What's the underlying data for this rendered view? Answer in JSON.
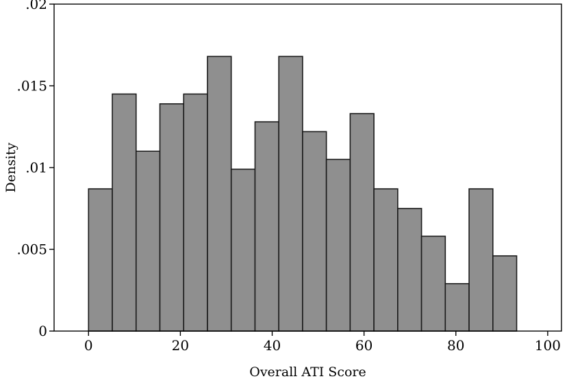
{
  "chart_data": {
    "type": "bar",
    "subtype": "histogram",
    "xlabel": "Overall ATI Score",
    "ylabel": "Density",
    "xlim": [
      -7.5,
      103
    ],
    "ylim": [
      0,
      0.02
    ],
    "xticks": [
      {
        "value": 0,
        "label": "0"
      },
      {
        "value": 20,
        "label": "20"
      },
      {
        "value": 40,
        "label": "40"
      },
      {
        "value": 60,
        "label": "60"
      },
      {
        "value": 80,
        "label": "80"
      },
      {
        "value": 100,
        "label": "100"
      }
    ],
    "yticks": [
      {
        "value": 0,
        "label": "0"
      },
      {
        "value": 0.005,
        "label": ".005"
      },
      {
        "value": 0.01,
        "label": ".01"
      },
      {
        "value": 0.015,
        "label": ".015"
      },
      {
        "value": 0.02,
        "label": ".02"
      }
    ],
    "bin_width": 5.18,
    "bin_edges": [
      0.0,
      5.18,
      10.36,
      15.54,
      20.72,
      25.9,
      31.08,
      36.26,
      41.44,
      46.62,
      51.8,
      56.98,
      62.16,
      67.34,
      72.52,
      77.7,
      82.88,
      88.06,
      93.24
    ],
    "values": [
      0.0087,
      0.0145,
      0.011,
      0.0139,
      0.0145,
      0.0168,
      0.0099,
      0.0128,
      0.0168,
      0.0122,
      0.0105,
      0.0133,
      0.0087,
      0.0075,
      0.0058,
      0.0029,
      0.0087,
      0.0046
    ],
    "grid": false,
    "colors": {
      "bar_fill": "#8f8f8f",
      "bar_edge": "#1a1a1a"
    }
  }
}
